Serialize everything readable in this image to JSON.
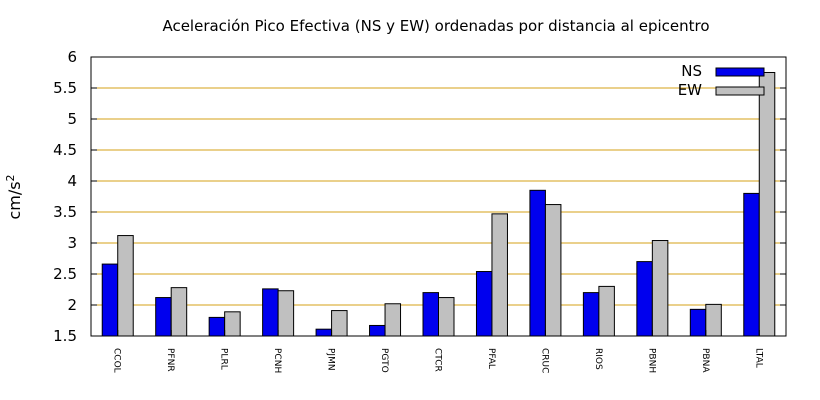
{
  "chart_data": {
    "type": "bar",
    "title": "Aceleración Pico Efectiva (NS y EW) ordenadas por distancia al epicentro",
    "xlabel": "",
    "ylabel": "cm/s",
    "ylabel_superscript": "2",
    "ylim": [
      1.5,
      6
    ],
    "yticks": [
      "1.5",
      "2",
      "2.5",
      "3",
      "3.5",
      "4",
      "4.5",
      "5",
      "5.5",
      "6"
    ],
    "grid": true,
    "legend_position": "top-right",
    "categories": [
      "CCOL",
      "PFNR",
      "PLRL",
      "PCNH",
      "PJMN",
      "PGTO",
      "CTCR",
      "PFAL",
      "CRUC",
      "RIOS",
      "PBNH",
      "PBNA",
      "LTAL"
    ],
    "series": [
      {
        "name": "NS",
        "color": "#0000ee",
        "values": [
          2.66,
          2.12,
          1.8,
          2.26,
          1.61,
          1.67,
          2.2,
          2.54,
          3.85,
          2.2,
          2.7,
          1.93,
          3.8
        ]
      },
      {
        "name": "EW",
        "color": "#c0c0c0",
        "values": [
          3.12,
          2.28,
          1.89,
          2.23,
          1.91,
          2.02,
          2.12,
          3.47,
          3.62,
          2.3,
          3.04,
          2.01,
          5.75
        ]
      }
    ],
    "colors": {
      "grid": "#d4a017",
      "axis": "#000000"
    }
  }
}
